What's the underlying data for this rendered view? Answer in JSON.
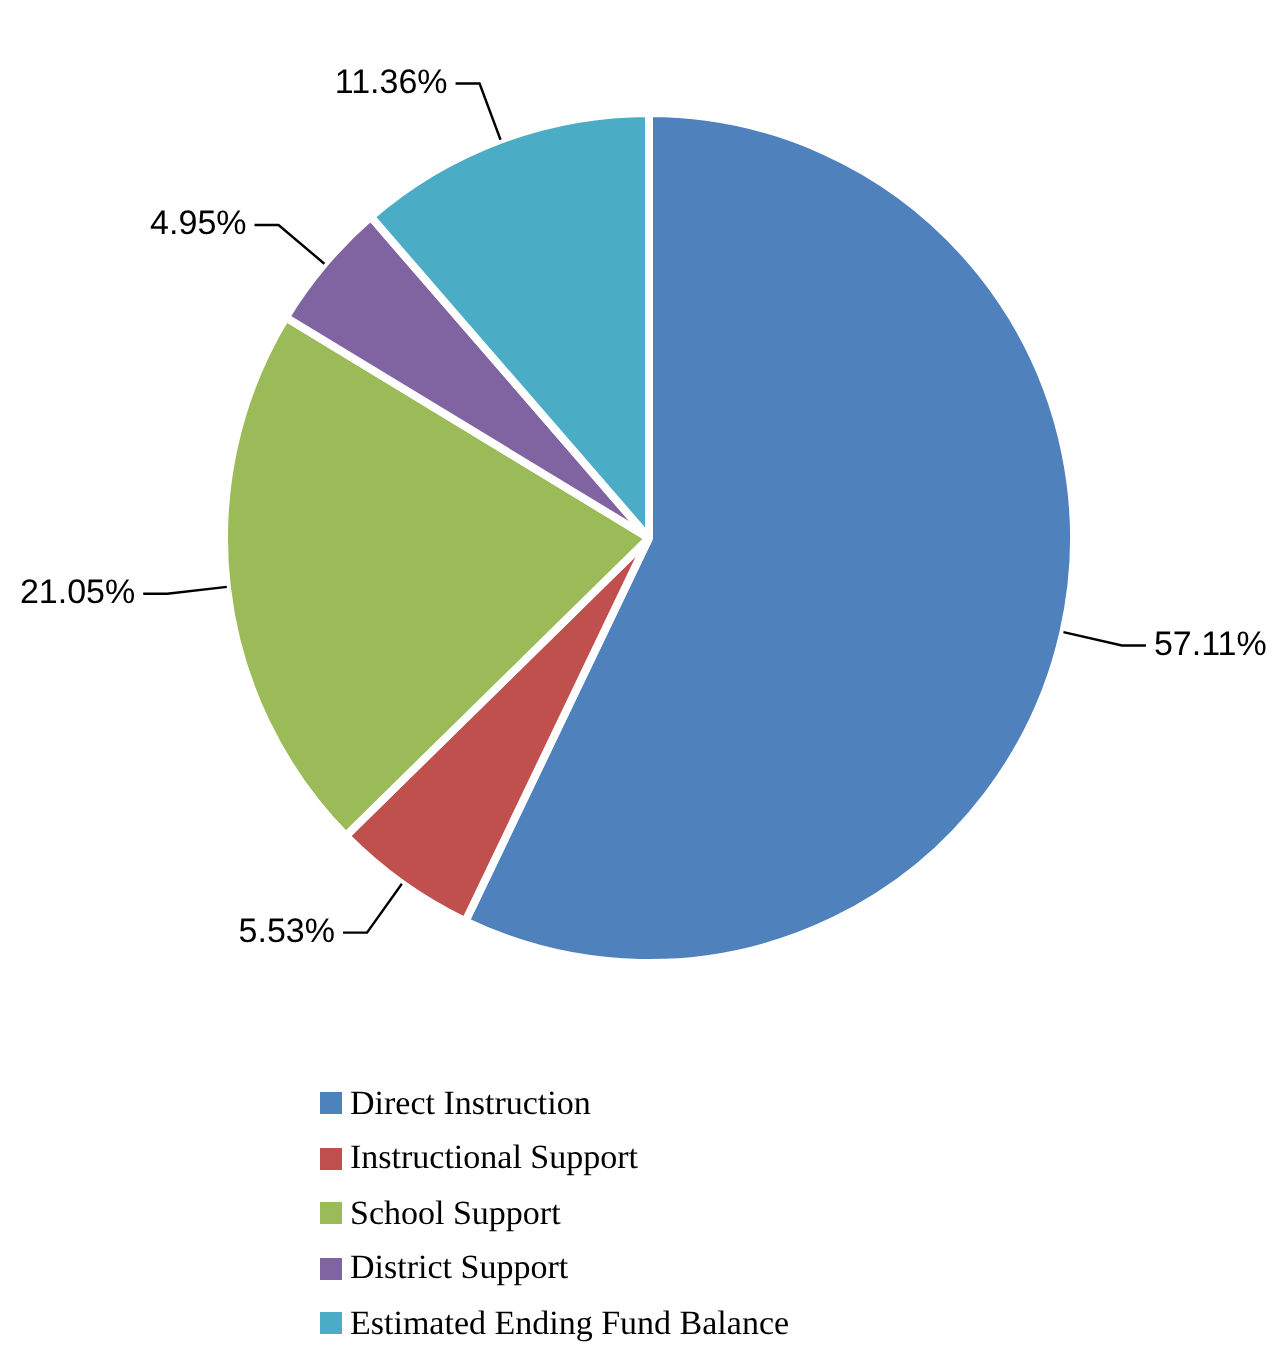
{
  "chart_data": {
    "type": "pie",
    "categories": [
      "Direct Instruction",
      "Instructional Support",
      "School Support",
      "District Support",
      "Estimated Ending Fund Balance"
    ],
    "values": [
      57.11,
      5.53,
      21.05,
      4.95,
      11.36
    ],
    "colors": [
      "#4f81bd",
      "#c0504d",
      "#9bbb59",
      "#8064a2",
      "#4bacc6"
    ],
    "value_labels": [
      "57.11%",
      "5.53%",
      "21.05%",
      "4.95%",
      "11.36%"
    ],
    "legend": "bottom"
  }
}
